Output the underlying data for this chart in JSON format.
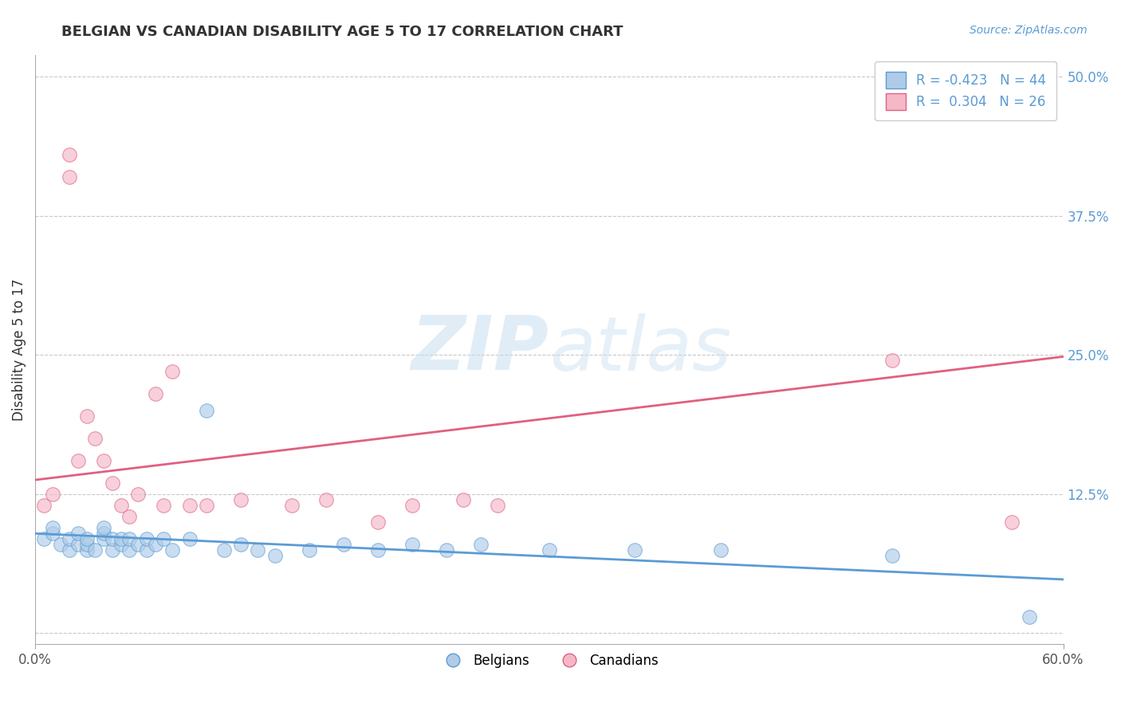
{
  "title": "BELGIAN VS CANADIAN DISABILITY AGE 5 TO 17 CORRELATION CHART",
  "source_text": "Source: ZipAtlas.com",
  "ylabel": "Disability Age 5 to 17",
  "xlim": [
    0.0,
    0.6
  ],
  "ylim": [
    -0.01,
    0.52
  ],
  "xticks": [
    0.0,
    0.6
  ],
  "xticklabels": [
    "0.0%",
    "60.0%"
  ],
  "yticks_right": [
    0.125,
    0.25,
    0.375,
    0.5
  ],
  "yticklabels_right": [
    "12.5%",
    "25.0%",
    "37.5%",
    "50.0%"
  ],
  "yticks_grid": [
    0.0,
    0.125,
    0.25,
    0.375,
    0.5
  ],
  "belgian_R": -0.423,
  "belgian_N": 44,
  "canadian_R": 0.304,
  "canadian_N": 26,
  "belgian_color": "#aecce8",
  "canadian_color": "#f4b8c8",
  "belgian_line_color": "#5b9bd5",
  "canadian_line_color": "#e06080",
  "watermark_zip": "ZIP",
  "watermark_atlas": "atlas",
  "background_color": "#ffffff",
  "grid_color": "#c8c8c8",
  "belgian_scatter_x": [
    0.005,
    0.01,
    0.01,
    0.015,
    0.02,
    0.02,
    0.025,
    0.025,
    0.03,
    0.03,
    0.03,
    0.035,
    0.04,
    0.04,
    0.04,
    0.045,
    0.045,
    0.05,
    0.05,
    0.055,
    0.055,
    0.06,
    0.065,
    0.065,
    0.07,
    0.075,
    0.08,
    0.09,
    0.1,
    0.11,
    0.12,
    0.13,
    0.14,
    0.16,
    0.18,
    0.2,
    0.22,
    0.24,
    0.26,
    0.3,
    0.35,
    0.4,
    0.5,
    0.58
  ],
  "belgian_scatter_y": [
    0.085,
    0.09,
    0.095,
    0.08,
    0.075,
    0.085,
    0.08,
    0.09,
    0.075,
    0.08,
    0.085,
    0.075,
    0.085,
    0.09,
    0.095,
    0.075,
    0.085,
    0.08,
    0.085,
    0.075,
    0.085,
    0.08,
    0.075,
    0.085,
    0.08,
    0.085,
    0.075,
    0.085,
    0.2,
    0.075,
    0.08,
    0.075,
    0.07,
    0.075,
    0.08,
    0.075,
    0.08,
    0.075,
    0.08,
    0.075,
    0.075,
    0.075,
    0.07,
    0.015
  ],
  "canadian_scatter_x": [
    0.005,
    0.01,
    0.02,
    0.02,
    0.025,
    0.03,
    0.035,
    0.04,
    0.045,
    0.05,
    0.055,
    0.06,
    0.07,
    0.075,
    0.08,
    0.09,
    0.1,
    0.12,
    0.15,
    0.17,
    0.2,
    0.22,
    0.25,
    0.27,
    0.5,
    0.57
  ],
  "canadian_scatter_y": [
    0.115,
    0.125,
    0.41,
    0.43,
    0.155,
    0.195,
    0.175,
    0.155,
    0.135,
    0.115,
    0.105,
    0.125,
    0.215,
    0.115,
    0.235,
    0.115,
    0.115,
    0.12,
    0.115,
    0.12,
    0.1,
    0.115,
    0.12,
    0.115,
    0.245,
    0.1
  ]
}
